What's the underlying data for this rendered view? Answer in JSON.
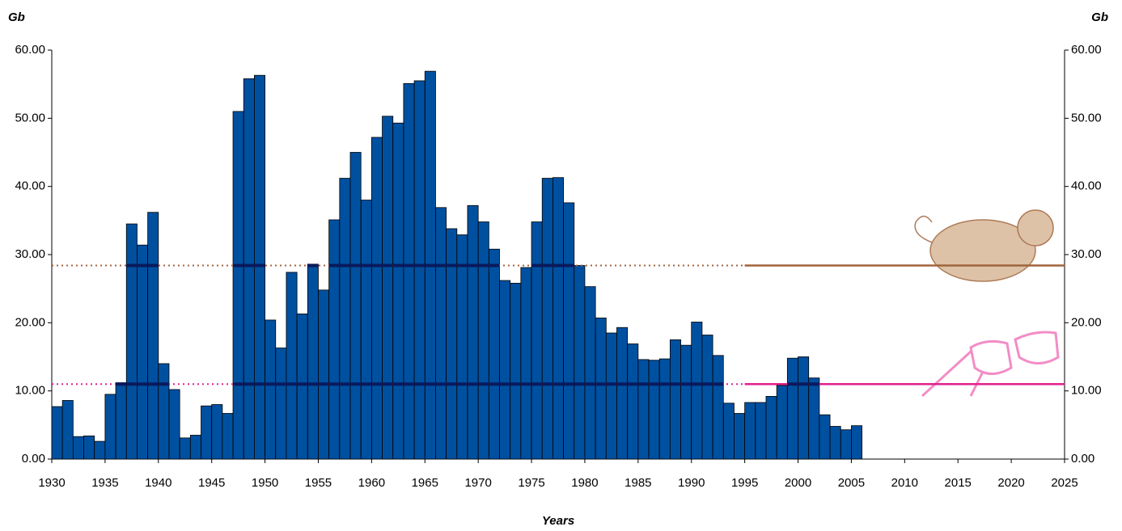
{
  "chart_data": {
    "type": "bar",
    "y_title": "Gb",
    "y2_title": "Gb",
    "x_title": "Years",
    "x": [
      1930,
      1931,
      1932,
      1933,
      1934,
      1935,
      1936,
      1937,
      1938,
      1939,
      1940,
      1941,
      1942,
      1943,
      1944,
      1945,
      1946,
      1947,
      1948,
      1949,
      1950,
      1951,
      1952,
      1953,
      1954,
      1955,
      1956,
      1957,
      1958,
      1959,
      1960,
      1961,
      1962,
      1963,
      1964,
      1965,
      1966,
      1967,
      1968,
      1969,
      1970,
      1971,
      1972,
      1973,
      1974,
      1975,
      1976,
      1977,
      1978,
      1979,
      1980,
      1981,
      1982,
      1983,
      1984,
      1985,
      1986,
      1987,
      1988,
      1989,
      1990,
      1991,
      1992,
      1993,
      1994,
      1995,
      1996,
      1997,
      1998,
      1999,
      2000,
      2001,
      2002,
      2003,
      2004,
      2005
    ],
    "values": [
      7.7,
      8.6,
      3.3,
      3.4,
      2.6,
      9.5,
      11.2,
      34.5,
      31.4,
      36.2,
      14.0,
      10.2,
      3.1,
      3.5,
      7.8,
      8.0,
      6.7,
      51.0,
      55.8,
      56.3,
      20.4,
      16.3,
      27.4,
      21.3,
      28.6,
      24.8,
      35.1,
      41.2,
      45.0,
      38.0,
      47.2,
      50.3,
      49.3,
      55.1,
      55.5,
      56.9,
      36.9,
      33.8,
      32.9,
      37.2,
      34.8,
      30.8,
      26.2,
      25.8,
      28.1,
      34.8,
      41.2,
      41.3,
      37.6,
      28.4,
      25.3,
      20.7,
      18.5,
      19.3,
      16.9,
      14.6,
      14.5,
      14.7,
      17.5,
      16.7,
      20.1,
      18.2,
      15.2,
      8.2,
      6.7,
      8.3,
      8.3,
      9.2,
      10.8,
      14.8,
      15.0,
      11.9,
      6.5,
      4.8,
      4.3,
      4.9
    ],
    "color": "#0050a0",
    "reference_lines": [
      {
        "value": 28.4,
        "color": "#a0643c",
        "dotted_until": 1995
      },
      {
        "value": 11.0,
        "color": "#e0208c",
        "dotted_until": 1995
      }
    ],
    "xlim": [
      1930,
      2025
    ],
    "xticks": [
      1930,
      1935,
      1940,
      1945,
      1950,
      1955,
      1960,
      1965,
      1970,
      1975,
      1980,
      1985,
      1990,
      1995,
      2000,
      2005,
      2010,
      2015,
      2020,
      2025
    ],
    "ylim": [
      0,
      60
    ],
    "yticks": [
      {
        "value": 0,
        "label": "0.00"
      },
      {
        "value": 10,
        "label": "10.00"
      },
      {
        "value": 20,
        "label": "20.00"
      },
      {
        "value": 30,
        "label": "30.00"
      },
      {
        "value": 40,
        "label": "40.00"
      },
      {
        "value": 50,
        "label": "50.00"
      },
      {
        "value": 60,
        "label": "60.00"
      }
    ],
    "y2lim": [
      0,
      60
    ],
    "y2ticks": [
      {
        "value": 0,
        "label": "0.00"
      },
      {
        "value": 10,
        "label": "10.00"
      },
      {
        "value": 20,
        "label": "20.00"
      },
      {
        "value": 30,
        "label": "30.00"
      },
      {
        "value": 40,
        "label": "40.00"
      },
      {
        "value": 50,
        "label": "50.00"
      },
      {
        "value": 60,
        "label": "60.00"
      }
    ]
  }
}
